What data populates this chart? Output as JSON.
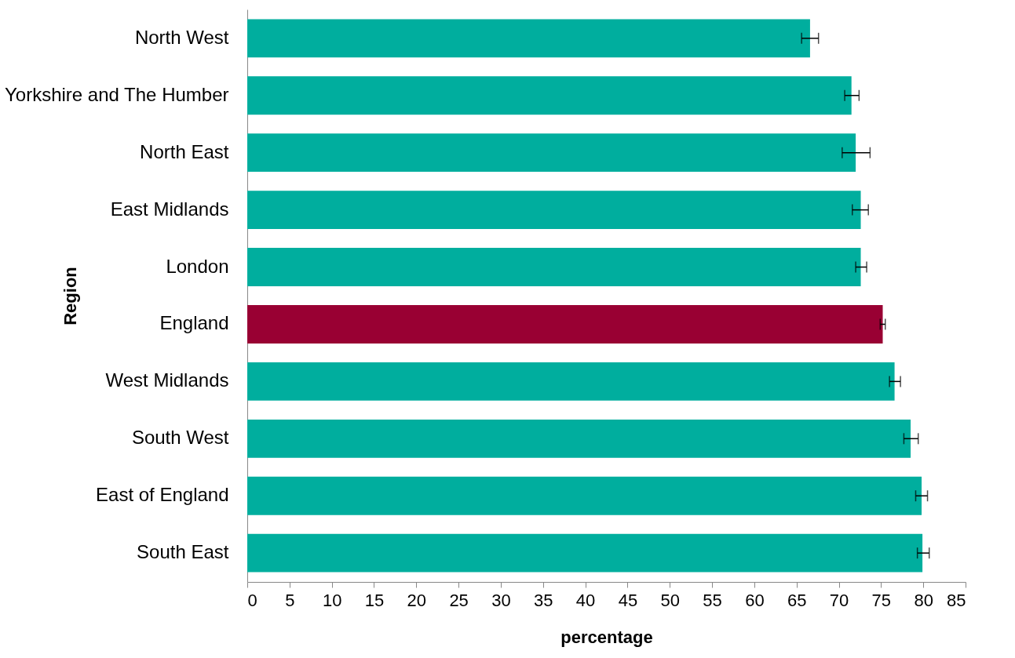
{
  "chart_data": {
    "type": "bar",
    "orientation": "horizontal",
    "xlabel": "percentage",
    "ylabel": "Region",
    "categories": [
      "North West",
      "Yorkshire and The Humber",
      "North East",
      "East Midlands",
      "London",
      "England",
      "West Midlands",
      "South West",
      "East of England",
      "South East"
    ],
    "values": [
      66.6,
      71.5,
      72.0,
      72.6,
      72.6,
      75.2,
      76.6,
      78.5,
      79.8,
      79.9
    ],
    "colors": [
      "#00ae9e",
      "#00ae9e",
      "#00ae9e",
      "#00ae9e",
      "#00ae9e",
      "#990033",
      "#00ae9e",
      "#00ae9e",
      "#00ae9e",
      "#00ae9e"
    ],
    "errors": [
      [
        65.6,
        67.6
      ],
      [
        70.7,
        72.4
      ],
      [
        70.4,
        73.7
      ],
      [
        71.6,
        73.5
      ],
      [
        72.0,
        73.3
      ],
      [
        74.9,
        75.5
      ],
      [
        76.0,
        77.3
      ],
      [
        77.7,
        79.4
      ],
      [
        79.1,
        80.5
      ],
      [
        79.3,
        80.7
      ]
    ],
    "xlim": [
      0,
      85
    ],
    "xticks": [
      0,
      5,
      10,
      15,
      20,
      25,
      30,
      35,
      40,
      45,
      50,
      55,
      60,
      65,
      70,
      75,
      80,
      85
    ],
    "grid": false
  }
}
